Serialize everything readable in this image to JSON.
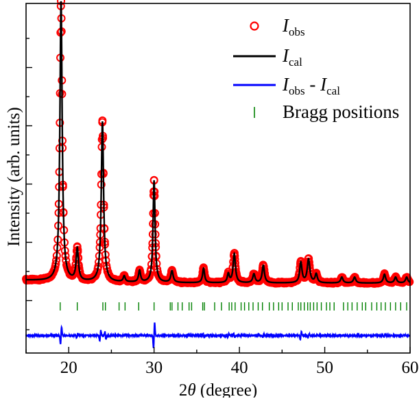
{
  "chart_data": {
    "type": "line",
    "title": "",
    "xlabel": {
      "prefix": "2",
      "symbol": "θ",
      "suffix": " (degree)"
    },
    "ylabel": "Intensity (arb. units)",
    "xlim": [
      15,
      60
    ],
    "ylim": [
      -0.18,
      1.02
    ],
    "x_ticks": [
      20,
      30,
      40,
      50,
      60
    ],
    "y_ticks_labeled": false,
    "grid": false,
    "legend_position": "top-right",
    "legend": [
      {
        "key": "obs",
        "base": "I",
        "sub": "obs",
        "rest": "",
        "rest_base": "",
        "rest_sub": "",
        "marker": "circle",
        "color": "#ff0000"
      },
      {
        "key": "cal",
        "base": "I",
        "sub": "cal",
        "rest": "",
        "rest_base": "",
        "rest_sub": "",
        "marker": "line",
        "color": "#000000"
      },
      {
        "key": "diff",
        "base": "I",
        "sub": "obs",
        "rest": " - ",
        "rest_base": "I",
        "rest_sub": "cal",
        "marker": "line",
        "color": "#0000ff"
      },
      {
        "key": "bragg",
        "text": "Bragg positions",
        "marker": "tick",
        "color": "#008000"
      }
    ],
    "background_level": 0.06,
    "diff_offset": -0.12,
    "bragg_row_y": -0.02,
    "peaks": [
      {
        "x": 19.1,
        "height": 0.96,
        "width": 0.16
      },
      {
        "x": 21.0,
        "height": 0.11,
        "width": 0.16
      },
      {
        "x": 23.95,
        "height": 0.55,
        "width": 0.16
      },
      {
        "x": 26.5,
        "height": 0.02,
        "width": 0.14
      },
      {
        "x": 28.3,
        "height": 0.04,
        "width": 0.14
      },
      {
        "x": 30.0,
        "height": 0.35,
        "width": 0.14
      },
      {
        "x": 32.1,
        "height": 0.04,
        "width": 0.16
      },
      {
        "x": 35.8,
        "height": 0.05,
        "width": 0.14
      },
      {
        "x": 38.7,
        "height": 0.03,
        "width": 0.14
      },
      {
        "x": 39.4,
        "height": 0.1,
        "width": 0.16
      },
      {
        "x": 41.7,
        "height": 0.03,
        "width": 0.16
      },
      {
        "x": 42.8,
        "height": 0.06,
        "width": 0.16
      },
      {
        "x": 47.2,
        "height": 0.07,
        "width": 0.16
      },
      {
        "x": 48.1,
        "height": 0.08,
        "width": 0.18
      },
      {
        "x": 49.0,
        "height": 0.03,
        "width": 0.16
      },
      {
        "x": 52.0,
        "height": 0.02,
        "width": 0.16
      },
      {
        "x": 53.5,
        "height": 0.02,
        "width": 0.16
      },
      {
        "x": 57.0,
        "height": 0.03,
        "width": 0.16
      },
      {
        "x": 58.3,
        "height": 0.02,
        "width": 0.16
      },
      {
        "x": 59.6,
        "height": 0.02,
        "width": 0.16
      }
    ],
    "diff_features": [
      {
        "x": 19.1,
        "amp": 0.07
      },
      {
        "x": 21.0,
        "amp": 0.015
      },
      {
        "x": 23.7,
        "amp": 0.04
      },
      {
        "x": 24.3,
        "amp": -0.03
      },
      {
        "x": 30.0,
        "amp": 0.1
      },
      {
        "x": 35.8,
        "amp": -0.015
      },
      {
        "x": 38.7,
        "amp": 0.015
      },
      {
        "x": 39.4,
        "amp": -0.015
      },
      {
        "x": 42.8,
        "amp": 0.015
      },
      {
        "x": 47.2,
        "amp": 0.03
      },
      {
        "x": 48.1,
        "amp": 0.015
      },
      {
        "x": 49.0,
        "amp": 0.01
      },
      {
        "x": 57.0,
        "amp": 0.01
      }
    ],
    "bragg_positions": [
      19.0,
      21.0,
      24.0,
      24.3,
      25.9,
      26.6,
      28.2,
      30.0,
      31.9,
      32.1,
      32.8,
      33.3,
      34.1,
      34.4,
      35.7,
      35.9,
      37.1,
      37.9,
      38.8,
      39.1,
      39.5,
      40.2,
      40.6,
      41.1,
      41.6,
      42.2,
      42.7,
      43.5,
      44.0,
      44.6,
      45.0,
      45.7,
      46.2,
      46.9,
      47.2,
      47.6,
      48.0,
      48.3,
      48.7,
      49.1,
      49.6,
      50.2,
      50.6,
      51.1,
      52.2,
      52.7,
      53.2,
      53.8,
      54.4,
      54.8,
      55.5,
      56.1,
      56.6,
      57.1,
      57.7,
      58.3,
      58.9,
      59.6
    ]
  }
}
